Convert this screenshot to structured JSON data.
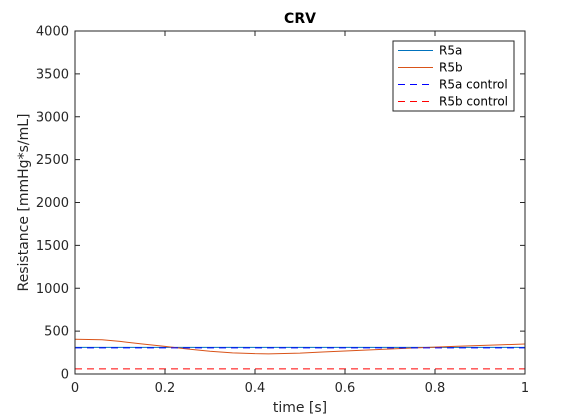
{
  "chart_data": {
    "type": "line",
    "title": "CRV",
    "xlabel": "time [s]",
    "ylabel": "Resistance [mmHg*s/mL]",
    "xlim": [
      0,
      1
    ],
    "ylim": [
      0,
      4000
    ],
    "xticks": [
      0,
      0.2,
      0.4,
      0.6,
      0.8,
      1
    ],
    "xtick_labels": [
      "0",
      "0.2",
      "0.4",
      "0.6",
      "0.8",
      "1"
    ],
    "yticks": [
      0,
      500,
      1000,
      1500,
      2000,
      2500,
      3000,
      3500,
      4000
    ],
    "ytick_labels": [
      "0",
      "500",
      "1000",
      "1500",
      "2000",
      "2500",
      "3000",
      "3500",
      "4000"
    ],
    "grid": false,
    "legend_position": "top-right",
    "series": [
      {
        "name": "R5a",
        "color": "#0072BD",
        "dash": "solid",
        "x": [
          0,
          1
        ],
        "y": [
          310,
          310
        ]
      },
      {
        "name": "R5b",
        "color": "#D95319",
        "dash": "solid",
        "x": [
          0,
          0.06,
          0.1,
          0.15,
          0.2,
          0.25,
          0.3,
          0.35,
          0.4,
          0.43,
          0.5,
          0.55,
          0.6,
          0.65,
          0.7,
          0.75,
          0.8,
          0.85,
          0.9,
          0.95,
          1.0
        ],
        "y": [
          405,
          400,
          380,
          350,
          322,
          292,
          265,
          247,
          237,
          235,
          243,
          256,
          268,
          280,
          292,
          303,
          314,
          324,
          332,
          341,
          350
        ]
      },
      {
        "name": "R5a control",
        "color": "#0000FF",
        "dash": "dashed",
        "x": [
          0,
          1
        ],
        "y": [
          305,
          305
        ]
      },
      {
        "name": "R5b control",
        "color": "#FF0000",
        "dash": "dashed",
        "x": [
          0,
          1
        ],
        "y": [
          60,
          60
        ]
      }
    ]
  }
}
